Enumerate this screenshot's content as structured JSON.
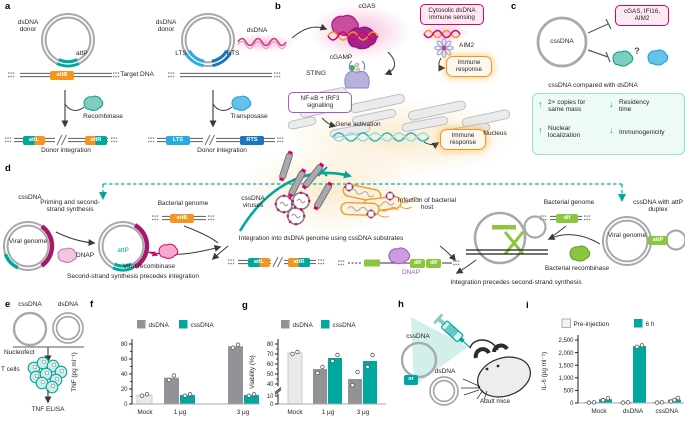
{
  "colors": {
    "teal": "#00a79c",
    "grey_bar": "#919396",
    "light_grey": "#e8e9ea",
    "orange": "#f7941e",
    "magenta": "#d6006f",
    "dark_magenta": "#a6186c",
    "light_blue": "#29abe2",
    "dark_blue": "#1b75bc",
    "green": "#8cc63e",
    "purple": "#9e5fc1",
    "pink_fill": "#fce9f3",
    "mint_fill": "#edfaf6"
  },
  "panels": {
    "a": {
      "label": "a",
      "donor_left": "dsDNA donor",
      "attp": "attP",
      "attb": "attB",
      "target_dna": "Target DNA",
      "recombinase": "Recombinase",
      "donor_right": "dsDNA donor",
      "lts": "LTS",
      "rts": "RTS",
      "transposase": "Transposase",
      "attl": "attL",
      "attr": "attR",
      "lts_box": "LTS",
      "rts_box": "RTS",
      "donor_integration_left": "Donor integration",
      "donor_integration_right": "Donor integration"
    },
    "b": {
      "label": "b",
      "dsdna": "dsDNA",
      "cgas": "cGAS",
      "cytosolic_box": "Cytosolic dsDNA immune sensing",
      "aim2": "AIM2",
      "immune_response_1": "Immune response",
      "cgamp": "cGAMP",
      "sting": "STING",
      "nfkb_box": "NF-κB + IRF3 signalling",
      "gene_activation": "Gene activation",
      "immune_response_2": "Immune response",
      "nucleus": "Nucleus"
    },
    "c": {
      "label": "c",
      "cssdna": "cssDNA",
      "sensors_box": "cGAS, IFI16, AIM2",
      "question": "?",
      "compare_title": "cssDNA compared with dsDNA",
      "items": [
        {
          "arrow": "↑",
          "text": "2× copies for same mass"
        },
        {
          "arrow": "↓",
          "text": "Residency time"
        },
        {
          "arrow": "↑",
          "text": "Nuclear localization"
        },
        {
          "arrow": "↓",
          "text": "Immunogenicity"
        }
      ]
    },
    "d": {
      "label": "d",
      "cssdna": "cssDNA",
      "viral_genome_left": "Viral genome",
      "priming": "Priming and second-strand synthesis",
      "dnap_left": "DNAP",
      "attp_left": "attP",
      "bacterial_genome_left": "Bacterial genome",
      "attb": "attB",
      "viral_recombinase": "Viral recombinase",
      "caption_left": "Second-strand synthesis precedes integration",
      "cssdna_viruses": "cssDNA viruses",
      "infection": "Infection of bacterial host",
      "integration_center": "Integration into dsDNA genome using cssDNA substrates",
      "attl": "attL",
      "attr": "attR",
      "dif1": "dif",
      "dif2": "dif",
      "dnap_center": "DNAP",
      "bacterial_genome_right": "Bacterial genome",
      "dif_right": "dif",
      "bacterial_recombinase": "Bacterial recombinase",
      "viral_genome_right": "Viral genome",
      "attp_right": "attP",
      "cssdna_attp": "cssDNA with attP duplex",
      "caption_right": "Integration precedes second-strand synthesis"
    },
    "e": {
      "label": "e",
      "cssdna": "cssDNA",
      "dsdna": "dsDNA",
      "nucleofect": "Nucleofect",
      "t_cells": "T cells",
      "tnf_elisa": "TNF ELISA"
    },
    "f": {
      "label": "f"
    },
    "g": {
      "label": "g"
    },
    "h": {
      "label": "h",
      "cssdna": "cssDNA",
      "or": "or",
      "dsdna": "dsDNA",
      "adult_mice": "Adult mice"
    },
    "i": {
      "label": "i"
    }
  },
  "chart_data": [
    {
      "id": "f",
      "type": "bar",
      "ylabel": "TNF (pg ml⁻¹)",
      "ylim": [
        0,
        80
      ],
      "yticks": [
        {
          "v": 0,
          "label": "0"
        },
        {
          "v": 20,
          "label": "20"
        },
        {
          "v": 40,
          "label": "40"
        },
        {
          "v": 60,
          "label": "60"
        },
        {
          "v": 80,
          "label": "80"
        }
      ],
      "minor_ticks": [
        10,
        30,
        50,
        70
      ],
      "categories": [
        "Mock",
        "1 μg",
        "3 μg"
      ],
      "legend": [
        {
          "label": "dsDNA",
          "color": "#919396"
        },
        {
          "label": "cssDNA",
          "color": "#00a79c"
        }
      ],
      "bars": [
        {
          "group": "Mock",
          "series": "mock",
          "value": 12,
          "color": "#e8e9ea",
          "stroke": "#c6c8ca",
          "points": [
            11,
            13
          ]
        },
        {
          "group": "1 μg",
          "series": "dsDNA",
          "value": 35,
          "color": "#919396",
          "points": [
            32,
            38
          ]
        },
        {
          "group": "1 μg",
          "series": "cssDNA",
          "value": 12,
          "color": "#00a79c",
          "points": [
            11,
            13
          ]
        },
        {
          "group": "3 μg",
          "series": "dsDNA",
          "value": 77,
          "color": "#919396",
          "points": [
            75,
            79
          ]
        },
        {
          "group": "3 μg",
          "series": "cssDNA",
          "value": 12,
          "color": "#00a79c",
          "points": [
            11,
            13
          ]
        }
      ]
    },
    {
      "id": "g",
      "type": "bar",
      "ylabel": "Viability (%)",
      "axis_break": true,
      "ylim": [
        0,
        80
      ],
      "yticks": [
        {
          "v": 0,
          "label": "0"
        },
        {
          "v": 10,
          "label": "10"
        },
        {
          "v": 40,
          "label": "40"
        },
        {
          "v": 50,
          "label": "50"
        },
        {
          "v": 60,
          "label": "60"
        },
        {
          "v": 70,
          "label": "70"
        },
        {
          "v": 80,
          "label": "80"
        }
      ],
      "minor_ticks": [
        45,
        55,
        65,
        75
      ],
      "categories": [
        "Mock",
        "1 μg",
        "3 μg"
      ],
      "legend": [
        {
          "label": "dsDNA",
          "color": "#919396"
        },
        {
          "label": "cssDNA",
          "color": "#00a79c"
        }
      ],
      "bars": [
        {
          "group": "Mock",
          "series": "mock",
          "value": 71,
          "color": "#e8e9ea",
          "stroke": "#c6c8ca",
          "points": [
            70,
            72
          ]
        },
        {
          "group": "1 μg",
          "series": "dsDNA",
          "value": 55,
          "color": "#919396",
          "points": [
            51,
            57
          ]
        },
        {
          "group": "1 μg",
          "series": "cssDNA",
          "value": 66,
          "color": "#00a79c",
          "points": [
            63,
            69
          ]
        },
        {
          "group": "3 μg",
          "series": "dsDNA",
          "value": 45,
          "color": "#919396",
          "points": [
            37,
            52
          ]
        },
        {
          "group": "3 μg",
          "series": "cssDNA",
          "value": 63,
          "color": "#00a79c",
          "points": [
            57,
            69
          ]
        }
      ]
    },
    {
      "id": "i",
      "type": "bar",
      "ylabel": "IL-6 (pg ml⁻¹)",
      "ylim": [
        0,
        2500
      ],
      "yticks": [
        {
          "v": 0,
          "label": "0"
        },
        {
          "v": 500,
          "label": "500"
        },
        {
          "v": 1000,
          "label": "1,000"
        },
        {
          "v": 1500,
          "label": "1,500"
        },
        {
          "v": 2000,
          "label": "2,000"
        },
        {
          "v": 2500,
          "label": "2,500"
        }
      ],
      "minor_ticks": [],
      "categories": [
        "Mock",
        "dsDNA",
        "cssDNA"
      ],
      "legend": [
        {
          "label": "Pre-injection",
          "color": "#f2f2f3",
          "stroke": "#a7a9ac"
        },
        {
          "label": "6 h",
          "color": "#00a79c"
        }
      ],
      "bars": [
        {
          "group": "Mock",
          "series": "Pre-injection",
          "value": 20,
          "color": "#f2f2f3",
          "stroke": "#a7a9ac",
          "points": [
            15,
            25
          ]
        },
        {
          "group": "Mock",
          "series": "6 h",
          "value": 150,
          "color": "#00a79c",
          "points": [
            110,
            190
          ]
        },
        {
          "group": "dsDNA",
          "series": "Pre-injection",
          "value": 20,
          "color": "#f2f2f3",
          "stroke": "#a7a9ac",
          "points": [
            15,
            25
          ]
        },
        {
          "group": "dsDNA",
          "series": "6 h",
          "value": 2260,
          "color": "#00a79c",
          "points": [
            2230,
            2290
          ]
        },
        {
          "group": "cssDNA",
          "series": "Pre-injection",
          "value": 20,
          "color": "#f2f2f3",
          "stroke": "#a7a9ac",
          "points": [
            15,
            25
          ]
        },
        {
          "group": "cssDNA",
          "series": "6 h",
          "value": 130,
          "color": "#00a79c",
          "points": [
            60,
            120,
            200
          ]
        }
      ]
    }
  ]
}
